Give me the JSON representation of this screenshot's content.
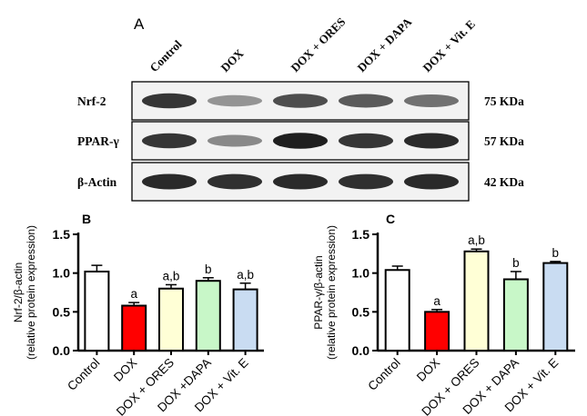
{
  "panel_a": {
    "label": "A",
    "lanes": [
      "Control",
      "DOX",
      "DOX + ORES",
      "DOX + DAPA",
      "DOX + Vit. E"
    ],
    "blots": [
      {
        "protein": "Nrf-2",
        "size": "75 KDa",
        "intensity": [
          0.85,
          0.45,
          0.75,
          0.7,
          0.6
        ]
      },
      {
        "protein": "PPAR-γ",
        "size": "57 KDa",
        "intensity": [
          0.85,
          0.5,
          0.95,
          0.85,
          0.9
        ]
      },
      {
        "protein": "β-Actin",
        "size": "42 KDa",
        "intensity": [
          0.9,
          0.88,
          0.9,
          0.88,
          0.9
        ]
      }
    ]
  },
  "chart_data": [
    {
      "type": "bar",
      "panel": "B",
      "categories": [
        "Control",
        "DOX",
        "DOX + ORES",
        "DOX +DAPA",
        "DOX + Vit. E"
      ],
      "values": [
        1.02,
        0.58,
        0.8,
        0.9,
        0.79
      ],
      "errors": [
        0.08,
        0.04,
        0.05,
        0.04,
        0.08
      ],
      "significance": [
        "",
        "a",
        "a,b",
        "b",
        "a,b"
      ],
      "colors": [
        "#ffffff",
        "#ff0000",
        "#ffffd6",
        "#c8f7c8",
        "#c9dcf2"
      ],
      "ylabel_lines": [
        "Nrf-2/β-actin",
        "(relative protein expression)"
      ],
      "ylim": [
        0,
        1.5
      ],
      "yticks": [
        "0.0",
        "0.5",
        "1.0",
        "1.5"
      ]
    },
    {
      "type": "bar",
      "panel": "C",
      "categories": [
        "Control",
        "DOX",
        "DOX + ORES",
        "DOX + DAPA",
        "DOX + Vit. E"
      ],
      "values": [
        1.04,
        0.5,
        1.28,
        0.92,
        1.13
      ],
      "errors": [
        0.05,
        0.03,
        0.03,
        0.1,
        0.02
      ],
      "significance": [
        "",
        "a",
        "a,b",
        "b",
        "b"
      ],
      "colors": [
        "#ffffff",
        "#ff0000",
        "#ffffd6",
        "#c8f7c8",
        "#c9dcf2"
      ],
      "ylabel_lines": [
        "PPAR-γ/β-actin",
        "(relative protein expression)"
      ],
      "ylim": [
        0,
        1.5
      ],
      "yticks": [
        "0.0",
        "0.5",
        "1.0",
        "1.5"
      ]
    }
  ]
}
